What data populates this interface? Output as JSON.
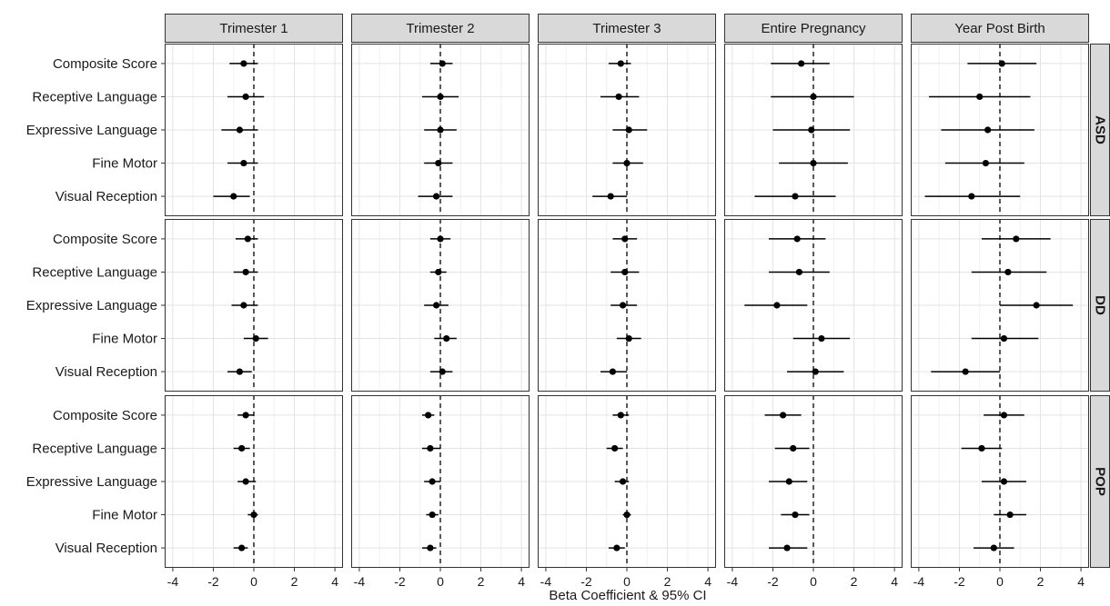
{
  "chart_data": {
    "type": "scatter",
    "subtype": "forest-plot",
    "xlabel": "Beta Coefficient & 95% CI",
    "ylabel": "",
    "title": "",
    "xlim": [
      -4.4,
      4.4
    ],
    "xticks": [
      -4,
      -2,
      0,
      2,
      4
    ],
    "reference_line": 0,
    "grid": true,
    "columns": [
      "Trimester 1",
      "Trimester 2",
      "Trimester 3",
      "Entire Pregnancy",
      "Year Post Birth"
    ],
    "rows": [
      "ASD",
      "DD",
      "POP"
    ],
    "categories": [
      "Composite Score",
      "Receptive Language",
      "Expressive Language",
      "Fine Motor",
      "Visual Reception"
    ],
    "panels": [
      {
        "row": "ASD",
        "column": "Trimester 1",
        "points": [
          {
            "category": "Composite Score",
            "estimate": -0.5,
            "lower": -1.2,
            "upper": 0.2
          },
          {
            "category": "Receptive Language",
            "estimate": -0.4,
            "lower": -1.3,
            "upper": 0.5
          },
          {
            "category": "Expressive Language",
            "estimate": -0.7,
            "lower": -1.6,
            "upper": 0.2
          },
          {
            "category": "Fine Motor",
            "estimate": -0.5,
            "lower": -1.3,
            "upper": 0.2
          },
          {
            "category": "Visual Reception",
            "estimate": -1.0,
            "lower": -2.0,
            "upper": -0.2
          }
        ]
      },
      {
        "row": "ASD",
        "column": "Trimester 2",
        "points": [
          {
            "category": "Composite Score",
            "estimate": 0.1,
            "lower": -0.5,
            "upper": 0.6
          },
          {
            "category": "Receptive Language",
            "estimate": 0.0,
            "lower": -0.9,
            "upper": 0.9
          },
          {
            "category": "Expressive Language",
            "estimate": 0.0,
            "lower": -0.8,
            "upper": 0.8
          },
          {
            "category": "Fine Motor",
            "estimate": -0.1,
            "lower": -0.8,
            "upper": 0.6
          },
          {
            "category": "Visual Reception",
            "estimate": -0.2,
            "lower": -1.1,
            "upper": 0.6
          }
        ]
      },
      {
        "row": "ASD",
        "column": "Trimester 3",
        "points": [
          {
            "category": "Composite Score",
            "estimate": -0.3,
            "lower": -0.9,
            "upper": 0.2
          },
          {
            "category": "Receptive Language",
            "estimate": -0.4,
            "lower": -1.3,
            "upper": 0.6
          },
          {
            "category": "Expressive Language",
            "estimate": 0.1,
            "lower": -0.7,
            "upper": 1.0
          },
          {
            "category": "Fine Motor",
            "estimate": 0.0,
            "lower": -0.7,
            "upper": 0.8
          },
          {
            "category": "Visual Reception",
            "estimate": -0.8,
            "lower": -1.7,
            "upper": 0.0
          }
        ]
      },
      {
        "row": "ASD",
        "column": "Entire Pregnancy",
        "points": [
          {
            "category": "Composite Score",
            "estimate": -0.6,
            "lower": -2.1,
            "upper": 0.8
          },
          {
            "category": "Receptive Language",
            "estimate": 0.0,
            "lower": -2.1,
            "upper": 2.0
          },
          {
            "category": "Expressive Language",
            "estimate": -0.1,
            "lower": -2.0,
            "upper": 1.8
          },
          {
            "category": "Fine Motor",
            "estimate": 0.0,
            "lower": -1.7,
            "upper": 1.7
          },
          {
            "category": "Visual Reception",
            "estimate": -0.9,
            "lower": -2.9,
            "upper": 1.1
          }
        ]
      },
      {
        "row": "ASD",
        "column": "Year Post Birth",
        "points": [
          {
            "category": "Composite Score",
            "estimate": 0.1,
            "lower": -1.6,
            "upper": 1.8
          },
          {
            "category": "Receptive Language",
            "estimate": -1.0,
            "lower": -3.5,
            "upper": 1.5
          },
          {
            "category": "Expressive Language",
            "estimate": -0.6,
            "lower": -2.9,
            "upper": 1.7
          },
          {
            "category": "Fine Motor",
            "estimate": -0.7,
            "lower": -2.7,
            "upper": 1.2
          },
          {
            "category": "Visual Reception",
            "estimate": -1.4,
            "lower": -3.7,
            "upper": 1.0
          }
        ]
      },
      {
        "row": "DD",
        "column": "Trimester 1",
        "points": [
          {
            "category": "Composite Score",
            "estimate": -0.3,
            "lower": -0.9,
            "upper": 0.2
          },
          {
            "category": "Receptive Language",
            "estimate": -0.4,
            "lower": -1.0,
            "upper": 0.2
          },
          {
            "category": "Expressive Language",
            "estimate": -0.5,
            "lower": -1.1,
            "upper": 0.2
          },
          {
            "category": "Fine Motor",
            "estimate": 0.1,
            "lower": -0.5,
            "upper": 0.7
          },
          {
            "category": "Visual Reception",
            "estimate": -0.7,
            "lower": -1.3,
            "upper": -0.1
          }
        ]
      },
      {
        "row": "DD",
        "column": "Trimester 2",
        "points": [
          {
            "category": "Composite Score",
            "estimate": 0.0,
            "lower": -0.5,
            "upper": 0.5
          },
          {
            "category": "Receptive Language",
            "estimate": -0.1,
            "lower": -0.5,
            "upper": 0.3
          },
          {
            "category": "Expressive Language",
            "estimate": -0.2,
            "lower": -0.8,
            "upper": 0.4
          },
          {
            "category": "Fine Motor",
            "estimate": 0.3,
            "lower": -0.3,
            "upper": 0.8
          },
          {
            "category": "Visual Reception",
            "estimate": 0.1,
            "lower": -0.5,
            "upper": 0.6
          }
        ]
      },
      {
        "row": "DD",
        "column": "Trimester 3",
        "points": [
          {
            "category": "Composite Score",
            "estimate": -0.1,
            "lower": -0.7,
            "upper": 0.5
          },
          {
            "category": "Receptive Language",
            "estimate": -0.1,
            "lower": -0.8,
            "upper": 0.6
          },
          {
            "category": "Expressive Language",
            "estimate": -0.2,
            "lower": -0.8,
            "upper": 0.5
          },
          {
            "category": "Fine Motor",
            "estimate": 0.1,
            "lower": -0.5,
            "upper": 0.7
          },
          {
            "category": "Visual Reception",
            "estimate": -0.7,
            "lower": -1.3,
            "upper": 0.0
          }
        ]
      },
      {
        "row": "DD",
        "column": "Entire Pregnancy",
        "points": [
          {
            "category": "Composite Score",
            "estimate": -0.8,
            "lower": -2.2,
            "upper": 0.6
          },
          {
            "category": "Receptive Language",
            "estimate": -0.7,
            "lower": -2.2,
            "upper": 0.8
          },
          {
            "category": "Expressive Language",
            "estimate": -1.8,
            "lower": -3.4,
            "upper": -0.3
          },
          {
            "category": "Fine Motor",
            "estimate": 0.4,
            "lower": -1.0,
            "upper": 1.8
          },
          {
            "category": "Visual Reception",
            "estimate": 0.1,
            "lower": -1.3,
            "upper": 1.5
          }
        ]
      },
      {
        "row": "DD",
        "column": "Year Post Birth",
        "points": [
          {
            "category": "Composite Score",
            "estimate": 0.8,
            "lower": -0.9,
            "upper": 2.5
          },
          {
            "category": "Receptive Language",
            "estimate": 0.4,
            "lower": -1.4,
            "upper": 2.3
          },
          {
            "category": "Expressive Language",
            "estimate": 1.8,
            "lower": 0.0,
            "upper": 3.6
          },
          {
            "category": "Fine Motor",
            "estimate": 0.2,
            "lower": -1.4,
            "upper": 1.9
          },
          {
            "category": "Visual Reception",
            "estimate": -1.7,
            "lower": -3.4,
            "upper": 0.0
          }
        ]
      },
      {
        "row": "POP",
        "column": "Trimester 1",
        "points": [
          {
            "category": "Composite Score",
            "estimate": -0.4,
            "lower": -0.8,
            "upper": 0.0
          },
          {
            "category": "Receptive Language",
            "estimate": -0.6,
            "lower": -1.0,
            "upper": -0.2
          },
          {
            "category": "Expressive Language",
            "estimate": -0.4,
            "lower": -0.8,
            "upper": 0.1
          },
          {
            "category": "Fine Motor",
            "estimate": 0.0,
            "lower": -0.3,
            "upper": 0.2
          },
          {
            "category": "Visual Reception",
            "estimate": -0.6,
            "lower": -1.0,
            "upper": -0.3
          }
        ]
      },
      {
        "row": "POP",
        "column": "Trimester 2",
        "points": [
          {
            "category": "Composite Score",
            "estimate": -0.6,
            "lower": -0.9,
            "upper": -0.3
          },
          {
            "category": "Receptive Language",
            "estimate": -0.5,
            "lower": -0.9,
            "upper": 0.0
          },
          {
            "category": "Expressive Language",
            "estimate": -0.4,
            "lower": -0.8,
            "upper": 0.0
          },
          {
            "category": "Fine Motor",
            "estimate": -0.4,
            "lower": -0.7,
            "upper": -0.1
          },
          {
            "category": "Visual Reception",
            "estimate": -0.5,
            "lower": -0.9,
            "upper": -0.2
          }
        ]
      },
      {
        "row": "POP",
        "column": "Trimester 3",
        "points": [
          {
            "category": "Composite Score",
            "estimate": -0.3,
            "lower": -0.7,
            "upper": 0.1
          },
          {
            "category": "Receptive Language",
            "estimate": -0.6,
            "lower": -1.0,
            "upper": -0.2
          },
          {
            "category": "Expressive Language",
            "estimate": -0.2,
            "lower": -0.6,
            "upper": 0.1
          },
          {
            "category": "Fine Motor",
            "estimate": 0.0,
            "lower": -0.2,
            "upper": 0.2
          },
          {
            "category": "Visual Reception",
            "estimate": -0.5,
            "lower": -0.9,
            "upper": -0.1
          }
        ]
      },
      {
        "row": "POP",
        "column": "Entire Pregnancy",
        "points": [
          {
            "category": "Composite Score",
            "estimate": -1.5,
            "lower": -2.4,
            "upper": -0.6
          },
          {
            "category": "Receptive Language",
            "estimate": -1.0,
            "lower": -1.9,
            "upper": -0.2
          },
          {
            "category": "Expressive Language",
            "estimate": -1.2,
            "lower": -2.2,
            "upper": -0.3
          },
          {
            "category": "Fine Motor",
            "estimate": -0.9,
            "lower": -1.6,
            "upper": -0.2
          },
          {
            "category": "Visual Reception",
            "estimate": -1.3,
            "lower": -2.2,
            "upper": -0.3
          }
        ]
      },
      {
        "row": "POP",
        "column": "Year Post Birth",
        "points": [
          {
            "category": "Composite Score",
            "estimate": 0.2,
            "lower": -0.8,
            "upper": 1.2
          },
          {
            "category": "Receptive Language",
            "estimate": -0.9,
            "lower": -1.9,
            "upper": 0.1
          },
          {
            "category": "Expressive Language",
            "estimate": 0.2,
            "lower": -0.9,
            "upper": 1.3
          },
          {
            "category": "Fine Motor",
            "estimate": 0.5,
            "lower": -0.3,
            "upper": 1.3
          },
          {
            "category": "Visual Reception",
            "estimate": -0.3,
            "lower": -1.3,
            "upper": 0.7
          }
        ]
      }
    ]
  },
  "colors": {
    "strip_fill": "#d9d9d9",
    "panel_border": "#333333",
    "grid_major": "#e3e3e3",
    "grid_minor": "#f1f1f1",
    "point": "#000000",
    "reference_line": "#000000"
  }
}
